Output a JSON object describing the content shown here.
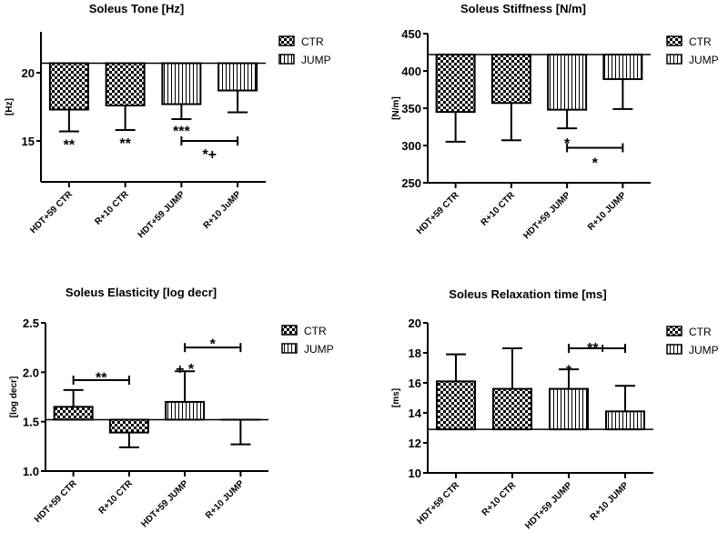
{
  "legend": [
    {
      "label": "CTR",
      "pattern": "checker"
    },
    {
      "label": "JUMP",
      "pattern": "vlines"
    }
  ],
  "colors": {
    "ink": "#000000",
    "fill": "#ffffff"
  },
  "chart_data": [
    {
      "type": "bar",
      "title": "Soleus Tone [Hz]",
      "ylabel": "[Hz]",
      "ylim": [
        12,
        23
      ],
      "yticks": [
        15,
        20
      ],
      "tick_decimals": 0,
      "baseline": 20.7,
      "categories": [
        "HDT+59 CTR",
        "R+10 CTR",
        "HDT+59 JUMP",
        "R+10 JuMP"
      ],
      "groups": [
        "CTR",
        "CTR",
        "JUMP",
        "JUMP"
      ],
      "values": [
        17.3,
        17.6,
        17.7,
        18.7
      ],
      "error_ends": [
        15.7,
        15.8,
        16.6,
        17.1
      ],
      "annotations": [
        {
          "text": "**",
          "cat": 0,
          "y": 14.9
        },
        {
          "text": "**",
          "cat": 1,
          "y": 15.0
        },
        {
          "text": "***",
          "cat": 2,
          "y": 15.9
        },
        {
          "text": "*+",
          "cat": 2.5,
          "y": 14.2
        }
      ],
      "brackets": [
        {
          "from": 2,
          "to": 3,
          "y": 15.0
        }
      ]
    },
    {
      "type": "bar",
      "title": "Soleus Stiffness [N/m]",
      "ylabel": "[N/m]",
      "ylim": [
        250,
        450
      ],
      "yticks": [
        250,
        300,
        350,
        400,
        450
      ],
      "tick_decimals": 0,
      "baseline": 422,
      "categories": [
        "HDT+59 CTR",
        "R+10 CTR",
        "HDT+59 JUMP",
        "R+10 JUMP"
      ],
      "groups": [
        "CTR",
        "CTR",
        "JUMP",
        "JUMP"
      ],
      "values": [
        345,
        357,
        348,
        389
      ],
      "error_ends": [
        305,
        307,
        323,
        349
      ],
      "annotations": [
        {
          "text": "*",
          "cat": 2,
          "y": 306
        },
        {
          "text": "*",
          "cat": 2.5,
          "y": 280
        }
      ],
      "brackets": [
        {
          "from": 2,
          "to": 3,
          "y": 297
        }
      ]
    },
    {
      "type": "bar",
      "title": "Soleus Elasticity [log decr]",
      "ylabel": "[log decr]",
      "ylim": [
        1.0,
        2.5
      ],
      "yticks": [
        1.0,
        1.5,
        2.0,
        2.5
      ],
      "tick_decimals": 1,
      "baseline": 1.52,
      "categories": [
        "HDT+59 CTR",
        "R+10 CTR",
        "HDT+59 JUMP",
        "R+10 JUMP"
      ],
      "groups": [
        "CTR",
        "CTR",
        "JUMP",
        "JUMP"
      ],
      "values": [
        1.65,
        1.39,
        1.7,
        1.52
      ],
      "error_ends": [
        1.82,
        1.24,
        2.01,
        1.27
      ],
      "annotations": [
        {
          "text": "**",
          "cat": 0.5,
          "y": 1.97
        },
        {
          "text": "+ *",
          "cat": 2,
          "y": 2.06
        },
        {
          "text": "*",
          "cat": 2.5,
          "y": 2.31
        }
      ],
      "brackets": [
        {
          "from": 0,
          "to": 1,
          "y": 1.92
        },
        {
          "from": 2,
          "to": 3,
          "y": 2.25
        }
      ]
    },
    {
      "type": "bar",
      "title": "Soleus Relaxation time [ms]",
      "ylabel": "[ms]",
      "ylim": [
        10,
        20
      ],
      "yticks": [
        10,
        12,
        14,
        16,
        18,
        20
      ],
      "tick_decimals": 0,
      "baseline": 12.9,
      "categories": [
        "HDT+59 CTR",
        "R+10 CTR",
        "HDT+59 JUMP",
        "R+10 JUMP"
      ],
      "groups": [
        "CTR",
        "CTR",
        "JUMP",
        "JUMP"
      ],
      "values": [
        16.1,
        15.6,
        15.6,
        14.1
      ],
      "error_ends": [
        17.9,
        18.3,
        16.9,
        15.8
      ],
      "annotations": [
        {
          "text": "*",
          "cat": 2,
          "y": 17.0
        },
        {
          "text": "**+",
          "cat": 2.5,
          "y": 18.5
        }
      ],
      "brackets": [
        {
          "from": 2,
          "to": 3,
          "y": 18.3
        }
      ]
    }
  ]
}
